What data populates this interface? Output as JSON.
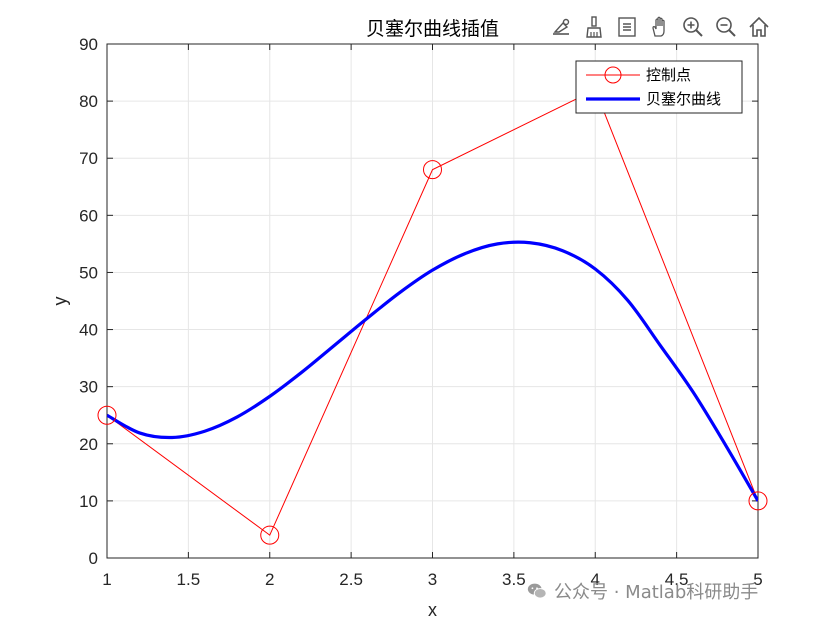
{
  "toolbar": {
    "icons": [
      "data-tips-icon",
      "brush-icon",
      "data-cursor-icon",
      "pan-hand-icon",
      "zoom-in-icon",
      "zoom-out-icon",
      "home-icon"
    ]
  },
  "watermark": {
    "text": "公众号 · Matlab科研助手",
    "icon": "wechat-icon"
  },
  "colors": {
    "control": "#ff0000",
    "curve": "#0000ff",
    "grid": "#e6e6e6",
    "axis": "#262626"
  },
  "chart_data": {
    "type": "line",
    "title": "贝塞尔曲线插值",
    "xlabel": "x",
    "ylabel": "y",
    "xlim": [
      1,
      5
    ],
    "ylim": [
      0,
      90
    ],
    "xticks": [
      1,
      1.5,
      2,
      2.5,
      3,
      3.5,
      4,
      4.5,
      5
    ],
    "yticks": [
      0,
      10,
      20,
      30,
      40,
      50,
      60,
      70,
      80,
      90
    ],
    "xtick_labels": [
      "1",
      "1.5",
      "2",
      "2.5",
      "3",
      "3.5",
      "4",
      "4.5",
      "5"
    ],
    "ytick_labels": [
      "0",
      "10",
      "20",
      "30",
      "40",
      "50",
      "60",
      "70",
      "80",
      "90"
    ],
    "grid": true,
    "legend_position": "top-right",
    "series": [
      {
        "name": "控制点",
        "style": "line-circle-markers",
        "color": "#ff0000",
        "x": [
          1,
          2,
          3,
          4,
          5
        ],
        "y": [
          25,
          4,
          68,
          82,
          10
        ]
      },
      {
        "name": "贝塞尔曲线",
        "style": "thick-line",
        "color": "#0000ff",
        "x": [
          1,
          1.2,
          1.4,
          1.6,
          1.8,
          2.0,
          2.2,
          2.4,
          2.6,
          2.8,
          3.0,
          3.2,
          3.4,
          3.6,
          3.8,
          4.0,
          4.2,
          4.4,
          4.6,
          4.8,
          5.0
        ],
        "y": [
          25,
          21.9,
          21.1,
          22.2,
          24.7,
          28.3,
          32.6,
          37.3,
          42.0,
          46.5,
          50.4,
          53.3,
          55.0,
          55.2,
          53.8,
          50.6,
          45.1,
          37.2,
          29.1,
          19.8,
          10
        ]
      }
    ]
  }
}
